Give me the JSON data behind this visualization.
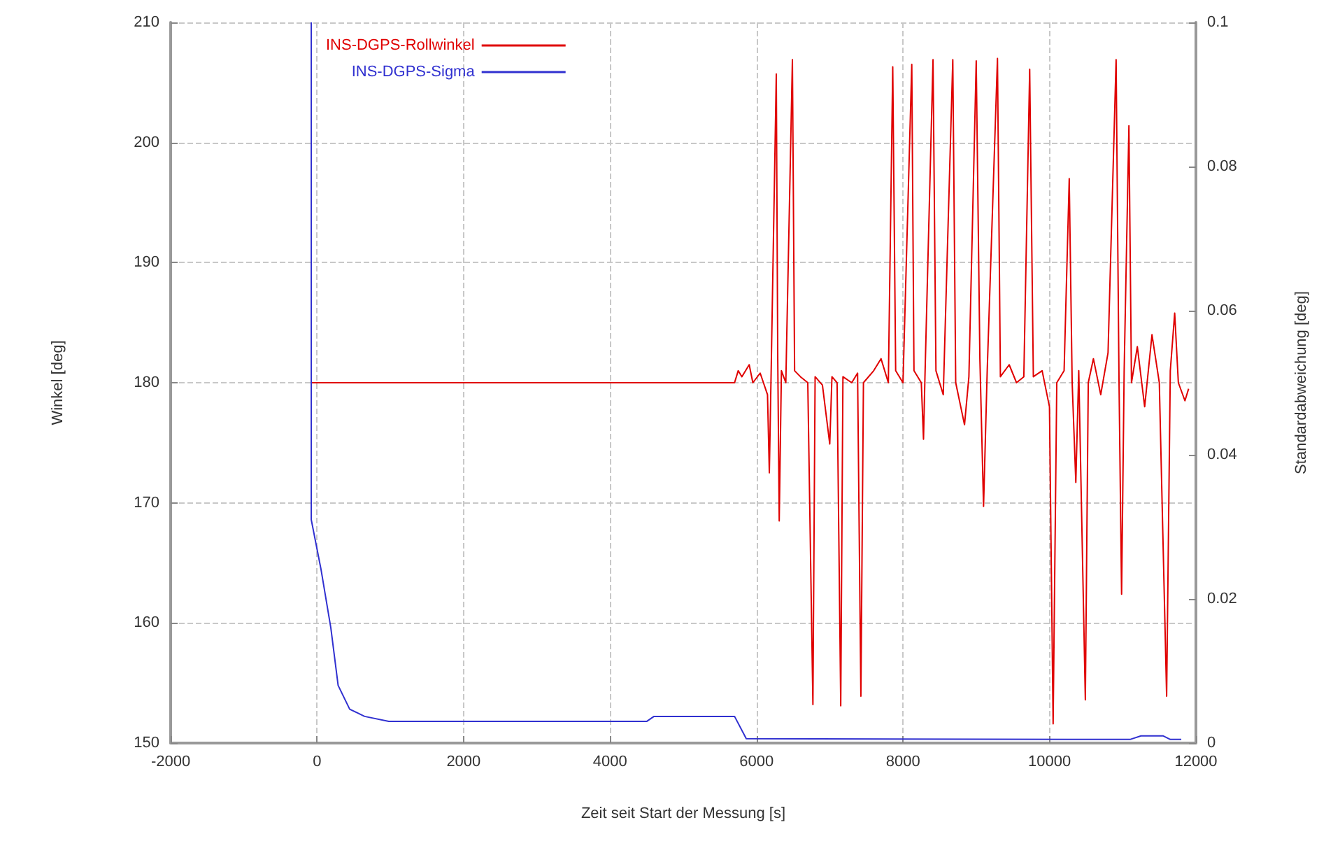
{
  "chart_data": {
    "type": "line",
    "xlabel": "Zeit seit Start der Messung [s]",
    "ylabel": "Winkel [deg]",
    "y2label": "Standardabweichung [deg]",
    "xlim": [
      -2000,
      12000
    ],
    "xticks": [
      -2000,
      0,
      2000,
      4000,
      6000,
      8000,
      10000,
      12000
    ],
    "ylim": [
      150,
      210
    ],
    "yticks": [
      150,
      160,
      170,
      180,
      190,
      200,
      210
    ],
    "y2lim": [
      0,
      0.1
    ],
    "y2ticks": [
      0,
      0.02,
      0.04,
      0.06,
      0.08,
      0.1
    ],
    "grid": true,
    "legend": "top left",
    "marker": "none",
    "line_style": "solid",
    "series": [
      {
        "name": "INS-DGPS-Rollwinkel",
        "color": "#e00000",
        "x": [
          -80,
          5700,
          5750,
          5800,
          5900,
          5950,
          6050,
          6150,
          6175,
          6200,
          6270,
          6290,
          6310,
          6340,
          6400,
          6490,
          6520,
          6600,
          6700,
          6770,
          6800,
          6900,
          7000,
          7030,
          7100,
          7150,
          7180,
          7300,
          7380,
          7425,
          7460,
          7600,
          7700,
          7800,
          7860,
          7900,
          8000,
          8120,
          8150,
          8250,
          8280,
          8300,
          8410,
          8450,
          8550,
          8680,
          8720,
          8840,
          8900,
          9000,
          9050,
          9100,
          9150,
          9290,
          9330,
          9450,
          9550,
          9650,
          9730,
          9780,
          9900,
          10000,
          10050,
          10100,
          10200,
          10270,
          10310,
          10360,
          10400,
          10490,
          10530,
          10600,
          10700,
          10800,
          10910,
          10950,
          10985,
          11020,
          11085,
          11120,
          11200,
          11300,
          11400,
          11500,
          11600,
          11650,
          11710,
          11760,
          11850,
          11900
        ],
        "values": [
          180,
          180,
          181,
          180.5,
          181.5,
          180,
          180.8,
          179,
          172.5,
          181,
          205.7,
          182,
          168.5,
          181,
          180,
          206.9,
          181,
          180.5,
          180,
          153.2,
          180.5,
          179.8,
          174.9,
          180.5,
          180,
          153.1,
          180.5,
          180,
          180.8,
          153.9,
          180,
          181,
          182,
          180,
          206.3,
          181,
          180,
          206.5,
          181,
          180,
          175.3,
          180.5,
          206.9,
          181,
          179,
          206.9,
          180,
          176.5,
          180.5,
          206.8,
          182,
          169.7,
          181,
          207,
          180.5,
          181.5,
          180,
          180.5,
          206.1,
          180.5,
          181,
          178,
          151.6,
          180,
          181,
          197,
          180,
          171.7,
          181,
          153.6,
          180,
          182,
          179,
          182.5,
          206.9,
          180,
          162.4,
          181,
          201.4,
          180,
          183,
          178,
          184,
          180,
          153.9,
          181,
          185.8,
          180,
          178.5,
          179.5
        ]
      },
      {
        "name": "INS-DGPS-Sigma",
        "color": "#3030d0",
        "axis": "y2",
        "x": [
          -80,
          -80,
          55,
          187,
          287,
          445,
          648,
          978,
          4500,
          4600,
          5700,
          5860,
          11100,
          11250,
          11550,
          11650,
          11800
        ],
        "values": [
          0.1,
          0.031,
          0.024,
          0.016,
          0.008,
          0.0047,
          0.0037,
          0.003,
          0.003,
          0.0037,
          0.0037,
          0.0006,
          0.0005,
          0.001,
          0.001,
          0.0005,
          0.0005
        ]
      }
    ]
  }
}
